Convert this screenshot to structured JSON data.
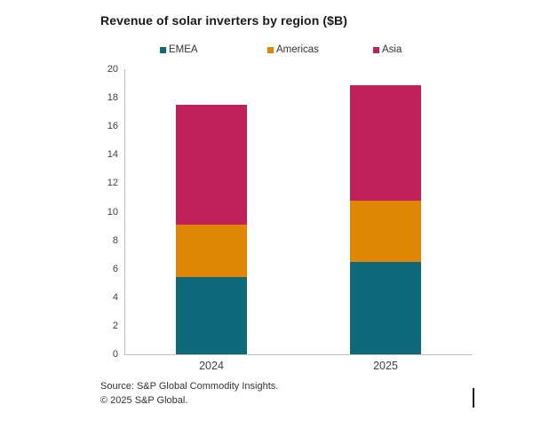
{
  "chart_data": {
    "type": "bar",
    "stacked": true,
    "title": "Revenue of solar inverters by region ($B)",
    "categories": [
      "2024",
      "2025"
    ],
    "series": [
      {
        "name": "EMEA",
        "color": "#0e697a",
        "values": [
          5.4,
          6.5
        ]
      },
      {
        "name": "Americas",
        "color": "#e08605",
        "values": [
          3.7,
          4.3
        ]
      },
      {
        "name": "Asia",
        "color": "#c0215a",
        "values": [
          8.4,
          8.1
        ]
      }
    ],
    "totals": [
      17.5,
      18.9
    ],
    "ylim": [
      0,
      20
    ],
    "yticks": [
      0,
      2,
      4,
      6,
      8,
      10,
      12,
      14,
      16,
      18,
      20
    ],
    "xlabel": "",
    "ylabel": "",
    "grid": false,
    "legend_position": "top"
  },
  "footer": {
    "source": "Source: S&P Global Commodity Insights.",
    "copyright": "© 2025 S&P Global."
  },
  "colors": {
    "axis": "#bfbfbf",
    "text": "#1a1a1a",
    "tick_text": "#404040"
  }
}
